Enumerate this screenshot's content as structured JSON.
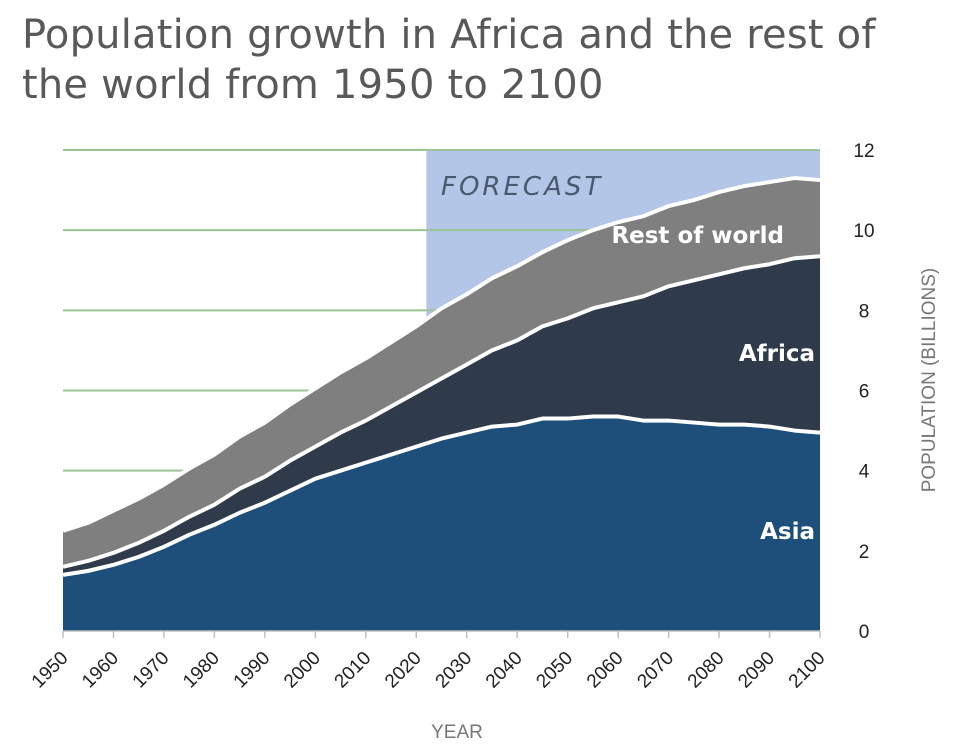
{
  "title": "Population growth in Africa and the rest of the world from 1950 to 2100",
  "chart_data": {
    "type": "area",
    "stacked": true,
    "title": "Population growth in Africa and the rest of the world from 1950 to 2100",
    "xlabel": "YEAR",
    "ylabel": "POPULATION (BILLIONS)",
    "xlim": [
      1950,
      2100
    ],
    "ylim": [
      0,
      12
    ],
    "x_ticks": [
      1950,
      1960,
      1970,
      1980,
      1990,
      2000,
      2010,
      2020,
      2030,
      2040,
      2050,
      2060,
      2070,
      2080,
      2090,
      2100
    ],
    "y_ticks": [
      0,
      2,
      4,
      6,
      8,
      10,
      12
    ],
    "y_axis_side": "right",
    "grid": true,
    "forecast_region": {
      "label": "FORECAST",
      "from": 2022,
      "to": 2100
    },
    "x": [
      1950,
      1955,
      1960,
      1965,
      1970,
      1975,
      1980,
      1985,
      1990,
      1995,
      2000,
      2005,
      2010,
      2015,
      2020,
      2025,
      2030,
      2035,
      2040,
      2045,
      2050,
      2055,
      2060,
      2065,
      2070,
      2075,
      2080,
      2085,
      2090,
      2095,
      2100
    ],
    "series": [
      {
        "name": "Asia",
        "values": [
          1.4,
          1.5,
          1.65,
          1.85,
          2.1,
          2.4,
          2.65,
          2.95,
          3.2,
          3.5,
          3.8,
          4.0,
          4.2,
          4.4,
          4.6,
          4.8,
          4.95,
          5.1,
          5.15,
          5.3,
          5.3,
          5.35,
          5.35,
          5.25,
          5.25,
          5.2,
          5.15,
          5.15,
          5.1,
          5.0,
          4.95
        ]
      },
      {
        "name": "Africa",
        "values": [
          0.2,
          0.25,
          0.3,
          0.35,
          0.4,
          0.45,
          0.5,
          0.6,
          0.65,
          0.75,
          0.8,
          0.95,
          1.05,
          1.2,
          1.35,
          1.5,
          1.7,
          1.9,
          2.1,
          2.3,
          2.5,
          2.7,
          2.85,
          3.1,
          3.35,
          3.55,
          3.75,
          3.9,
          4.05,
          4.3,
          4.4
        ]
      },
      {
        "name": "Rest of world",
        "values": [
          0.9,
          0.95,
          1.05,
          1.1,
          1.15,
          1.2,
          1.25,
          1.3,
          1.35,
          1.4,
          1.45,
          1.5,
          1.55,
          1.6,
          1.65,
          1.75,
          1.75,
          1.8,
          1.85,
          1.85,
          1.95,
          1.95,
          2.0,
          2.0,
          2.0,
          2.0,
          2.05,
          2.05,
          2.05,
          2.0,
          1.9
        ]
      }
    ],
    "colors": {
      "Asia": "#1d4f7a",
      "Africa": "#2f3a4b",
      "Rest of world": "#7f7f7f",
      "forecast": "#b4c6e7",
      "grid": "#9bc393",
      "separator": "#ffffff"
    },
    "label_positions_note": "series labels drawn inside their bands"
  }
}
